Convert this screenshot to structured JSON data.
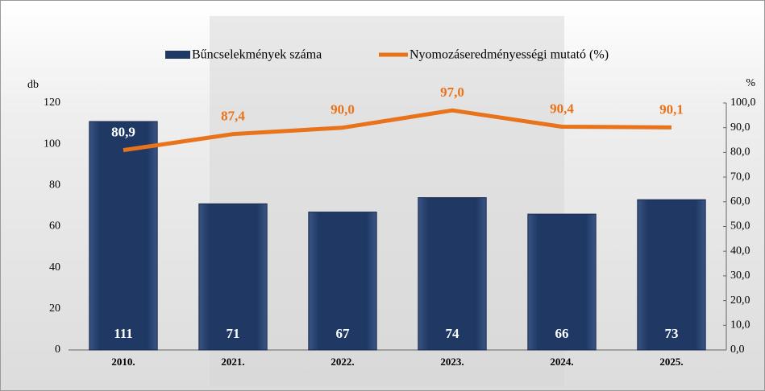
{
  "chart_data": {
    "type": "bar-line",
    "categories": [
      "2010.",
      "2021.",
      "2022.",
      "2023.",
      "2024.",
      "2025."
    ],
    "series": [
      {
        "name": "Bűncselekmények száma",
        "color": "#1f3864",
        "values": [
          111,
          71,
          67,
          74,
          66,
          73
        ]
      },
      {
        "name": "Nyomozáseredményességi mutató (%)",
        "color": "#e8731a",
        "axis": "y2",
        "values": [
          80.9,
          87.4,
          90.0,
          97.0,
          90.4,
          90.1
        ],
        "value_labels": [
          "80,9",
          "87,4",
          "90,0",
          "97,0",
          "90,4",
          "90,1"
        ]
      }
    ],
    "ylabel": "db",
    "y2label": "%",
    "ylim": [
      0,
      120
    ],
    "yticks": [
      0,
      20,
      40,
      60,
      80,
      100,
      120
    ],
    "y2lim": [
      0,
      100
    ],
    "y2ticks": [
      {
        "value": 0,
        "label": "0,0"
      },
      {
        "value": 10,
        "label": "10,0"
      },
      {
        "value": 20,
        "label": "20,0"
      },
      {
        "value": 30,
        "label": "30,0"
      },
      {
        "value": 40,
        "label": "40,0"
      },
      {
        "value": 50,
        "label": "50,0"
      },
      {
        "value": 60,
        "label": "60,0"
      },
      {
        "value": 70,
        "label": "70,0"
      },
      {
        "value": 80,
        "label": "80,0"
      },
      {
        "value": 90,
        "label": "90,0"
      },
      {
        "value": 100,
        "label": "100,0"
      }
    ]
  }
}
